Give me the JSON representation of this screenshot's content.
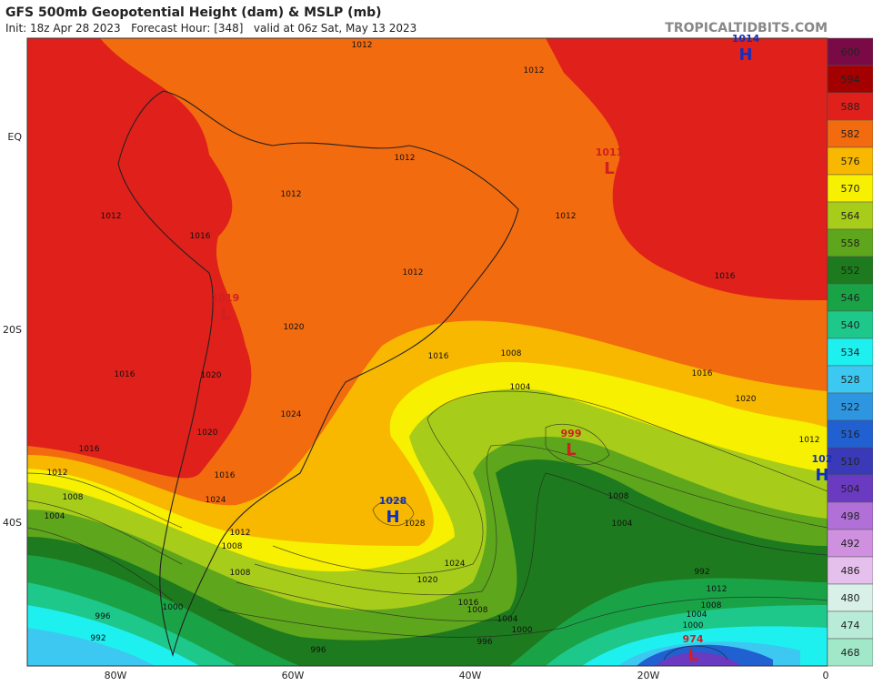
{
  "header": {
    "title": "GFS 500mb Geopotential Height (dam) & MSLP (mb)",
    "subtitle": "Init: 18z Apr 28 2023   Forecast Hour: [348]   valid at 06z Sat, May 13 2023",
    "watermark": "TROPICALTIDBITS.COM"
  },
  "colorbar": {
    "labels": [
      "600",
      "594",
      "588",
      "582",
      "576",
      "570",
      "564",
      "558",
      "552",
      "546",
      "540",
      "534",
      "528",
      "522",
      "516",
      "510",
      "504",
      "498",
      "492",
      "486",
      "480",
      "474",
      "468"
    ]
  },
  "lat_labels": [
    "EQ",
    "20S",
    "40S"
  ],
  "lon_labels": [
    "80W",
    "60W",
    "40W",
    "20W",
    "0"
  ],
  "pressure_centers": [
    {
      "letter": "H",
      "value": "1014"
    },
    {
      "letter": "L",
      "value": "1011"
    },
    {
      "letter": "L",
      "value": "1019"
    },
    {
      "letter": "L",
      "value": "999"
    },
    {
      "letter": "H",
      "value": "1028"
    },
    {
      "letter": "H",
      "value": "102"
    },
    {
      "letter": "L",
      "value": "974"
    }
  ],
  "isobar_labels": [
    "1012",
    "1012",
    "1012",
    "1012",
    "1012",
    "1012",
    "1012",
    "1016",
    "1016",
    "1016",
    "1020",
    "1024",
    "1020",
    "1016",
    "1016",
    "1008",
    "1004",
    "1008",
    "1004",
    "1016",
    "1012",
    "1008",
    "1004",
    "1000",
    "996",
    "992",
    "1008",
    "1012",
    "1016",
    "1020",
    "1024",
    "1028",
    "1008",
    "1004",
    "1000",
    "996",
    "992",
    "1012",
    "1008",
    "1004",
    "1000",
    "996",
    "1008",
    "1020",
    "1016",
    "1012",
    "1024",
    "1020"
  ]
}
